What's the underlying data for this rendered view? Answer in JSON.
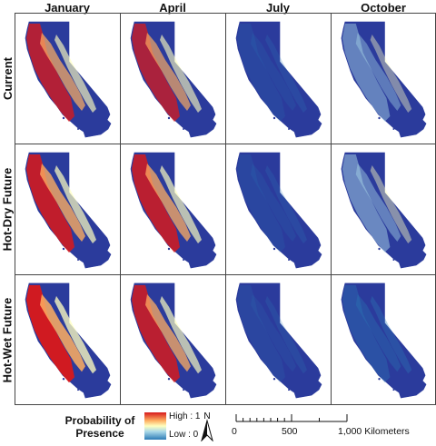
{
  "columns": [
    "January",
    "April",
    "July",
    "October"
  ],
  "rows": [
    "Current",
    "Hot-Dry Future",
    "Hot-Wet Future"
  ],
  "cells": [
    [
      {
        "presence": 0.75
      },
      {
        "presence": 0.7
      },
      {
        "presence": 0.05
      },
      {
        "presence": 0.35
      }
    ],
    [
      {
        "presence": 0.85
      },
      {
        "presence": 0.8
      },
      {
        "presence": 0.05
      },
      {
        "presence": 0.4
      }
    ],
    [
      {
        "presence": 0.95
      },
      {
        "presence": 0.8
      },
      {
        "presence": 0.03
      },
      {
        "presence": 0.25
      }
    ]
  ],
  "legend": {
    "title_line1": "Probability of",
    "title_line2": "Presence",
    "high_label": "High : 1",
    "low_label": "Low : 0",
    "colors": [
      "#d7191c",
      "#fdae61",
      "#ffffbf",
      "#abd9e9",
      "#2c7bb6",
      "#2b3b9c"
    ]
  },
  "north_arrow": {
    "label": "N"
  },
  "scale_bar": {
    "labels": [
      "0",
      "500",
      "1,000 Kilometers"
    ]
  }
}
